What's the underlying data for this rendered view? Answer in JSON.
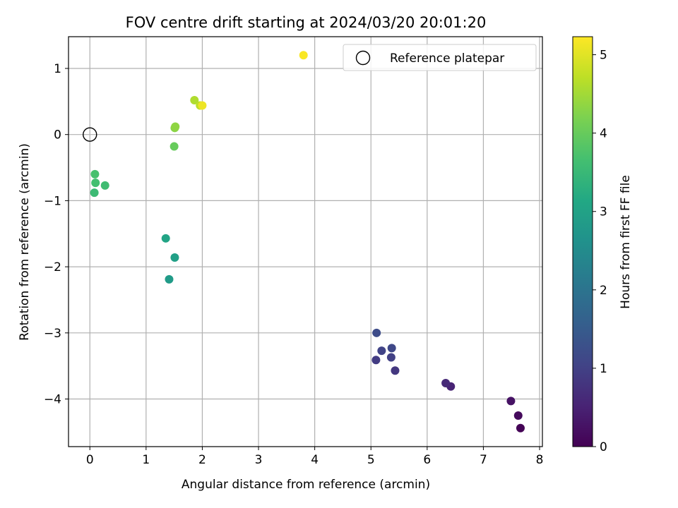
{
  "chart_data": {
    "type": "scatter",
    "title": "FOV centre drift starting at 2024/03/20 20:01:20",
    "xlabel": "Angular distance from reference (arcmin)",
    "ylabel": "Rotation from reference (arcmin)",
    "xlim": [
      -0.38,
      8.05
    ],
    "ylim": [
      -4.72,
      1.48
    ],
    "xticks": [
      0,
      1,
      2,
      3,
      4,
      5,
      6,
      7,
      8
    ],
    "yticks": [
      -4,
      -3,
      -2,
      -1,
      0,
      1
    ],
    "xtick_labels": [
      "0",
      "1",
      "2",
      "3",
      "4",
      "5",
      "6",
      "7",
      "8"
    ],
    "ytick_labels": [
      "−4",
      "−3",
      "−2",
      "−1",
      "0",
      "1"
    ],
    "grid": true,
    "legend": {
      "position": "top-right",
      "label": "Reference platepar"
    },
    "reference": {
      "x": 0,
      "y": 0
    },
    "colorbar": {
      "label": "Hours from first FF file",
      "range": [
        0,
        5.23
      ],
      "ticks": [
        0,
        1,
        2,
        3,
        4,
        5
      ],
      "tick_labels": [
        "0",
        "1",
        "2",
        "3",
        "4",
        "5"
      ]
    },
    "points": [
      {
        "x": 7.66,
        "y": -4.44,
        "c": 0.03
      },
      {
        "x": 7.62,
        "y": -4.25,
        "c": 0.13
      },
      {
        "x": 7.49,
        "y": -4.03,
        "c": 0.25
      },
      {
        "x": 6.42,
        "y": -3.81,
        "c": 0.53
      },
      {
        "x": 6.33,
        "y": -3.76,
        "c": 0.62
      },
      {
        "x": 5.43,
        "y": -3.57,
        "c": 0.85
      },
      {
        "x": 5.09,
        "y": -3.41,
        "c": 0.92
      },
      {
        "x": 5.36,
        "y": -3.37,
        "c": 1.0
      },
      {
        "x": 5.19,
        "y": -3.27,
        "c": 1.05
      },
      {
        "x": 5.37,
        "y": -3.23,
        "c": 1.12
      },
      {
        "x": 5.1,
        "y": -3.0,
        "c": 1.2
      },
      {
        "x": 1.41,
        "y": -2.19,
        "c": 2.85
      },
      {
        "x": 1.51,
        "y": -1.86,
        "c": 2.95
      },
      {
        "x": 1.35,
        "y": -1.57,
        "c": 3.05
      },
      {
        "x": 0.08,
        "y": -0.88,
        "c": 3.55
      },
      {
        "x": 0.27,
        "y": -0.77,
        "c": 3.6
      },
      {
        "x": 0.1,
        "y": -0.73,
        "c": 3.65
      },
      {
        "x": 0.09,
        "y": -0.6,
        "c": 3.7
      },
      {
        "x": 1.5,
        "y": -0.18,
        "c": 4.0
      },
      {
        "x": 1.51,
        "y": 0.1,
        "c": 4.3
      },
      {
        "x": 1.52,
        "y": 0.12,
        "c": 4.35
      },
      {
        "x": 1.86,
        "y": 0.52,
        "c": 4.6
      },
      {
        "x": 1.96,
        "y": 0.44,
        "c": 4.7
      },
      {
        "x": 2.0,
        "y": 0.44,
        "c": 5.1
      },
      {
        "x": 3.8,
        "y": 1.2,
        "c": 5.2
      }
    ]
  }
}
